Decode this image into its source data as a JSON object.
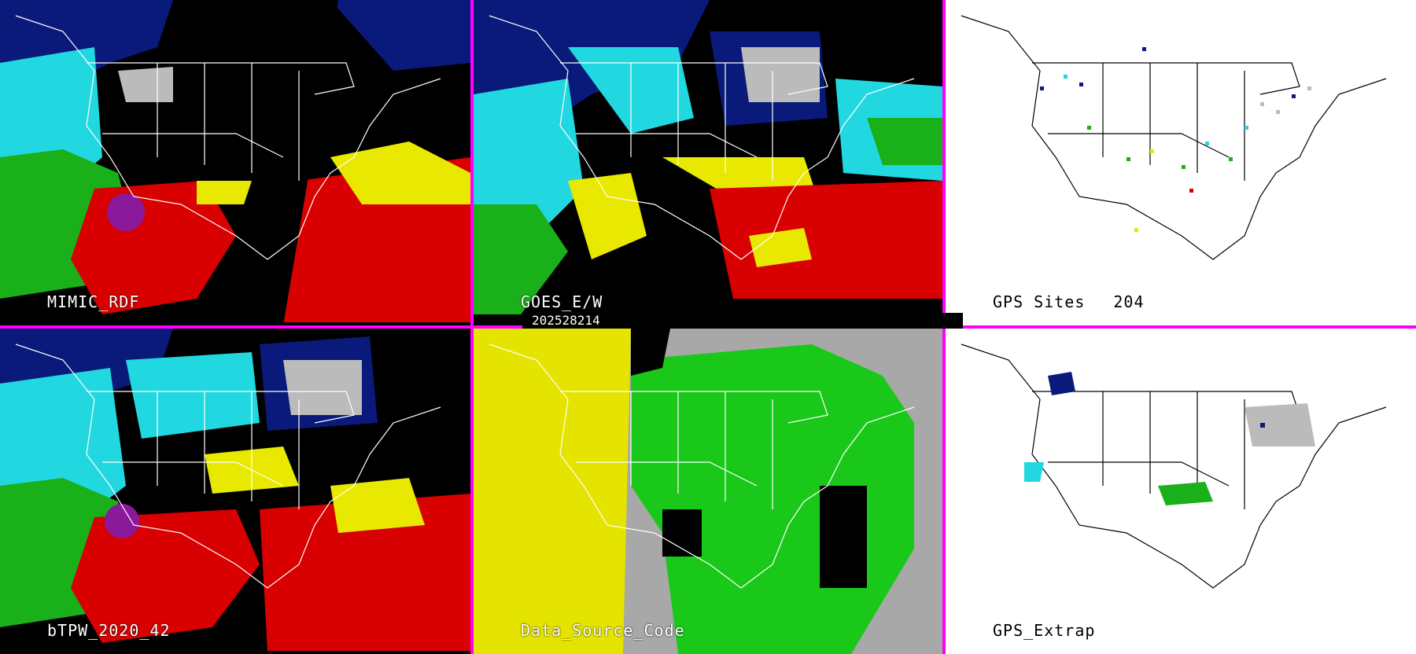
{
  "panels": [
    {
      "id": "mimic",
      "label": "MIMIC_RDF"
    },
    {
      "id": "goes",
      "label": "GOES_E/W"
    },
    {
      "id": "gps-sites",
      "label": "GPS Sites",
      "count": "204"
    },
    {
      "id": "btpw",
      "label": "bTPW_2020_42"
    },
    {
      "id": "source",
      "label": "Data_Source_Code"
    },
    {
      "id": "gps-extrap",
      "label": "GPS_Extrap"
    }
  ],
  "timestamp": "202528214",
  "colors": {
    "divider": "#ff00ff",
    "ocean_black": "#000000",
    "moisture_blue": "#0a1a7a",
    "moisture_cyan": "#22d8e0",
    "moisture_green": "#19b019",
    "moisture_yellow": "#e8e800",
    "moisture_red": "#d80000",
    "moisture_purple": "#8a1a9a",
    "source_yellow": "#e4e400",
    "source_green": "#19c819",
    "source_gray": "#a8a8a8"
  }
}
